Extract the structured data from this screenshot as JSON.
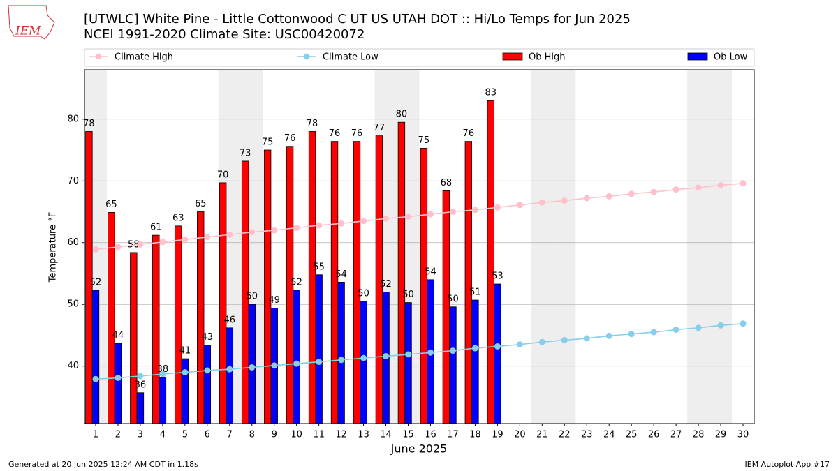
{
  "logo_text": "IEM",
  "footer_left": "Generated at 20 Jun 2025 12:24 AM CDT in 1.18s",
  "footer_right": "IEM Autoplot App #17",
  "chart_data": {
    "type": "bar_line",
    "title": "[UTWLC] White Pine - Little Cottonwood C UT US UTAH DOT :: Hi/Lo Temps for Jun 2025",
    "subtitle": "NCEI 1991-2020 Climate Site: USC00420072",
    "xlabel": "June 2025",
    "ylabel": "Temperature °F",
    "x": [
      1,
      2,
      3,
      4,
      5,
      6,
      7,
      8,
      9,
      10,
      11,
      12,
      13,
      14,
      15,
      16,
      17,
      18,
      19,
      20,
      21,
      22,
      23,
      24,
      25,
      26,
      27,
      28,
      29,
      30
    ],
    "xlim": [
      0.5,
      30.5
    ],
    "xticks": [
      1,
      2,
      3,
      4,
      5,
      6,
      7,
      8,
      9,
      10,
      11,
      12,
      13,
      14,
      15,
      16,
      17,
      18,
      19,
      20,
      21,
      22,
      23,
      24,
      25,
      26,
      27,
      28,
      29,
      30
    ],
    "ylim": [
      30.7,
      88.0
    ],
    "yticks": [
      40,
      50,
      60,
      70,
      80
    ],
    "grid": true,
    "shaded_days": [
      1,
      7,
      8,
      14,
      15,
      21,
      22,
      28,
      29
    ],
    "shade_color": "#eeeeee",
    "series": [
      {
        "name": "Climate High",
        "kind": "line",
        "color": "#ffc0cb",
        "values": [
          58.9,
          59.3,
          59.7,
          60.1,
          60.5,
          60.9,
          61.3,
          61.7,
          62.0,
          62.4,
          62.8,
          63.1,
          63.5,
          63.9,
          64.2,
          64.6,
          65.0,
          65.3,
          65.7,
          66.1,
          66.5,
          66.8,
          67.2,
          67.5,
          67.9,
          68.2,
          68.6,
          68.9,
          69.3,
          69.6
        ]
      },
      {
        "name": "Climate Low",
        "kind": "line",
        "color": "#87ceeb",
        "values": [
          37.9,
          38.1,
          38.4,
          38.7,
          39.0,
          39.3,
          39.5,
          39.8,
          40.1,
          40.4,
          40.7,
          41.0,
          41.3,
          41.6,
          41.9,
          42.2,
          42.5,
          42.9,
          43.2,
          43.5,
          43.9,
          44.2,
          44.5,
          44.9,
          45.2,
          45.5,
          45.9,
          46.2,
          46.6,
          46.9
        ]
      },
      {
        "name": "Ob High",
        "kind": "bar",
        "color": "#ff0000",
        "values": [
          78.0,
          64.9,
          58.4,
          61.2,
          62.7,
          65.0,
          69.7,
          73.2,
          75.0,
          75.6,
          78.0,
          76.4,
          76.4,
          77.3,
          79.5,
          75.3,
          68.4,
          76.4,
          83.0,
          null,
          null,
          null,
          null,
          null,
          null,
          null,
          null,
          null,
          null,
          null
        ],
        "value_labels": [
          "78",
          "65",
          "58",
          "61",
          "63",
          "65",
          "70",
          "73",
          "75",
          "76",
          "78",
          "76",
          "76",
          "77",
          "80",
          "75",
          "68",
          "76",
          "83",
          null,
          null,
          null,
          null,
          null,
          null,
          null,
          null,
          null,
          null,
          null
        ]
      },
      {
        "name": "Ob Low",
        "kind": "bar",
        "color": "#0000ff",
        "values": [
          52.3,
          43.7,
          35.7,
          38.2,
          41.2,
          43.4,
          46.2,
          50.0,
          49.4,
          52.3,
          54.8,
          53.6,
          50.5,
          52.0,
          50.3,
          54.0,
          49.6,
          50.7,
          53.3,
          null,
          null,
          null,
          null,
          null,
          null,
          null,
          null,
          null,
          null,
          null
        ],
        "value_labels": [
          "52",
          "44",
          "36",
          "38",
          "41",
          "43",
          "46",
          "50",
          "49",
          "52",
          "55",
          "54",
          "50",
          "52",
          "50",
          "54",
          "50",
          "51",
          "53",
          null,
          null,
          null,
          null,
          null,
          null,
          null,
          null,
          null,
          null,
          null
        ]
      }
    ]
  }
}
